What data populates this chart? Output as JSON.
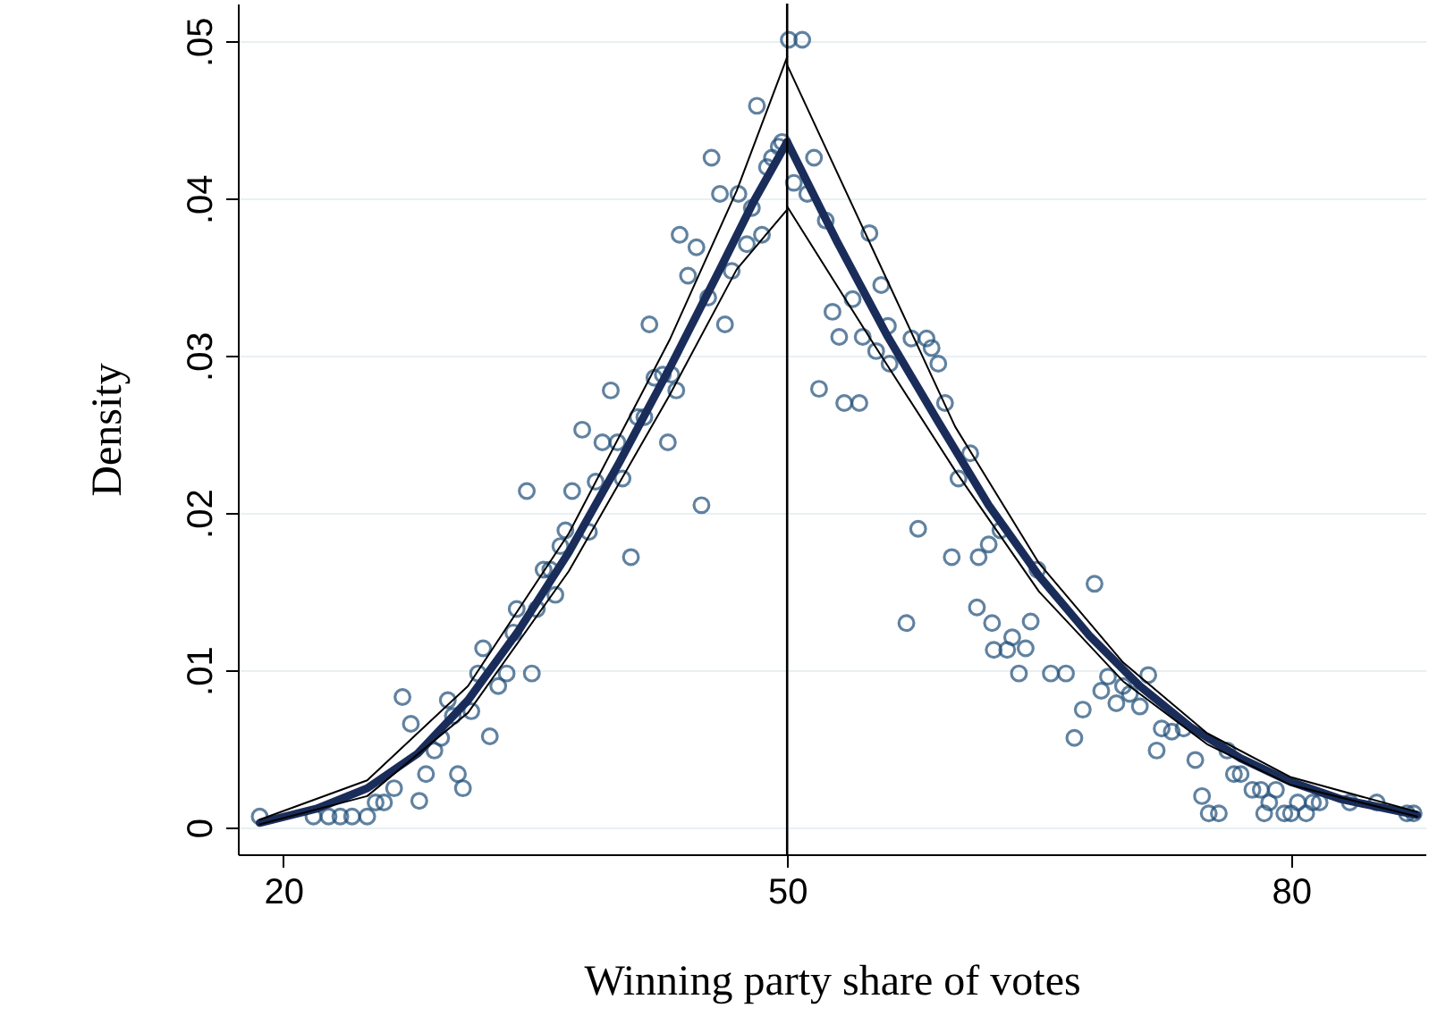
{
  "chart_data": {
    "type": "scatter",
    "xlabel": "Winning party share of votes",
    "ylabel": "Density",
    "xlim": [
      17.3,
      88
    ],
    "ylim": [
      -0.0017,
      0.0524
    ],
    "xticks": [
      20,
      50,
      80
    ],
    "yticks": [
      {
        "value": 0,
        "label": "0"
      },
      {
        "value": 0.01,
        "label": ".01"
      },
      {
        "value": 0.02,
        "label": ".02"
      },
      {
        "value": 0.03,
        "label": ".03"
      },
      {
        "value": 0.04,
        "label": ".04"
      },
      {
        "value": 0.05,
        "label": ".05"
      }
    ],
    "grid": "y",
    "ref_lines": [
      {
        "axis": "x",
        "value": 50,
        "color": "#000000"
      }
    ],
    "series": [
      {
        "marker": "circle",
        "color": "#1f4e79",
        "x": [
          18.6,
          21.8,
          22.7,
          23.4,
          24.1,
          25.0,
          25.5,
          26,
          26.6,
          27.1,
          27.6,
          28.1,
          28.5,
          29,
          29.4,
          29.8,
          30.1,
          30.4,
          30.7,
          31.2,
          31.6,
          31.9,
          32.3,
          32.8,
          33.3,
          33.7,
          33.9,
          34.5,
          34.8,
          35.1,
          35.5,
          35.9,
          36.2,
          36.5,
          36.8,
          37.2,
          37.8,
          38.2,
          38.6,
          39.0,
          39.5,
          39.9,
          40.2,
          40.7,
          41.1,
          41.5,
          41.8,
          42.1,
          42.6,
          42.9,
          43.1,
          43.4,
          43.6,
          44.1,
          44.6,
          44.9,
          45.3,
          45.5,
          46.0,
          46.3,
          46.7,
          47.1,
          47.6,
          47.9,
          48.2,
          48.5,
          48.8,
          49.1,
          49.5,
          49.7,
          50.1,
          50.9,
          51.6,
          50.4,
          51.2,
          52.3,
          54.9,
          52.7,
          53.1,
          53.9,
          55.6,
          51.9,
          53.4,
          54.3,
          54.5,
          55.3,
          56.1,
          56.0,
          57.4,
          58.3,
          58.6,
          59.0,
          59.4,
          60.9,
          60.2,
          57.8,
          57.1,
          59.8,
          61.3,
          62.2,
          62.7,
          62.0,
          61.4,
          62.3,
          63.1,
          63.4,
          64.2,
          63.8,
          64.9,
          64.5,
          66.6,
          65.7,
          67.1,
          67.6,
          68.3,
          68.7,
          69.1,
          69.6,
          70.0,
          70.4,
          71.0,
          71.5,
          72.0,
          72.3,
          72.9,
          73.6,
          74.3,
          74.7,
          75.1,
          75.7,
          76.2,
          76.6,
          77.0,
          77.7,
          78.2,
          78.4,
          78.7,
          79.1,
          79.6,
          80.0,
          80.4,
          80.9,
          81.3,
          81.7,
          83.5,
          85.1,
          86.9,
          87.3
        ],
        "values": [
          0.0007,
          0.0007,
          0.0007,
          0.0007,
          0.0007,
          0.0007,
          0.0016,
          0.0016,
          0.0025,
          0.0083,
          0.0066,
          0.0017,
          0.0034,
          0.0049,
          0.0057,
          0.0081,
          0.0071,
          0.0034,
          0.0025,
          0.0074,
          0.0098,
          0.0114,
          0.0058,
          0.009,
          0.0098,
          0.0124,
          0.0139,
          0.0214,
          0.0098,
          0.0139,
          0.0164,
          0.0164,
          0.0148,
          0.0179,
          0.0189,
          0.0214,
          0.0253,
          0.0188,
          0.022,
          0.0245,
          0.0278,
          0.0245,
          0.0222,
          0.0172,
          0.0261,
          0.0261,
          0.032,
          0.0286,
          0.0288,
          0.0245,
          0.0288,
          0.0278,
          0.0377,
          0.0351,
          0.0369,
          0.0205,
          0.0337,
          0.0426,
          0.0403,
          0.032,
          0.0354,
          0.0403,
          0.0371,
          0.0394,
          0.0459,
          0.0377,
          0.042,
          0.0426,
          0.0433,
          0.0436,
          0.0501,
          0.0501,
          0.0426,
          0.041,
          0.0403,
          0.0386,
          0.0378,
          0.0328,
          0.0312,
          0.0336,
          0.0345,
          0.0279,
          0.027,
          0.027,
          0.0312,
          0.0303,
          0.0295,
          0.0319,
          0.0311,
          0.0311,
          0.0305,
          0.0295,
          0.027,
          0.0238,
          0.0222,
          0.019,
          0.013,
          0.0172,
          0.014,
          0.013,
          0.0189,
          0.018,
          0.0172,
          0.0113,
          0.0113,
          0.0121,
          0.0114,
          0.0098,
          0.0164,
          0.0131,
          0.0098,
          0.0098,
          0.0057,
          0.0075,
          0.0155,
          0.0087,
          0.0096,
          0.0079,
          0.009,
          0.0085,
          0.0077,
          0.0097,
          0.0049,
          0.0063,
          0.0061,
          0.0063,
          0.0043,
          0.002,
          0.0009,
          0.0009,
          0.0049,
          0.0034,
          0.0034,
          0.0024,
          0.0024,
          0.0009,
          0.0016,
          0.0024,
          0.0009,
          0.0009,
          0.0016,
          0.0009,
          0.0016,
          0.0016,
          0.0016,
          0.0016,
          0.0009,
          0.0009
        ]
      },
      {
        "type": "line",
        "color": "#1a2d5a",
        "x": [
          18.6,
          22,
          25,
          28,
          31,
          34,
          37,
          40,
          43,
          46,
          48,
          50
        ],
        "values": [
          0.0003,
          0.0012,
          0.0025,
          0.0047,
          0.0081,
          0.0125,
          0.0175,
          0.0232,
          0.0292,
          0.0355,
          0.0398,
          0.0436
        ]
      },
      {
        "type": "line",
        "color": "#000000",
        "x": [
          18.6,
          25,
          31,
          37,
          43,
          47,
          50
        ],
        "values": [
          0.0005,
          0.003,
          0.009,
          0.0187,
          0.031,
          0.0405,
          0.049
        ]
      },
      {
        "type": "line",
        "color": "#000000",
        "x": [
          18.6,
          25,
          31,
          37,
          43,
          47,
          50
        ],
        "values": [
          0.0002,
          0.002,
          0.0073,
          0.0163,
          0.0275,
          0.0355,
          0.0393
        ]
      },
      {
        "type": "line",
        "color": "#1a2d5a",
        "x": [
          50,
          53,
          56,
          59,
          62,
          65,
          68,
          71,
          74,
          77,
          80,
          83,
          87.5
        ],
        "values": [
          0.0436,
          0.0372,
          0.0312,
          0.0258,
          0.0205,
          0.016,
          0.0122,
          0.009,
          0.0064,
          0.0044,
          0.0029,
          0.0018,
          0.0008
        ]
      },
      {
        "type": "line",
        "color": "#000000",
        "x": [
          50,
          55,
          60,
          65,
          70,
          75,
          80,
          87.5
        ],
        "values": [
          0.0485,
          0.037,
          0.0255,
          0.0168,
          0.0105,
          0.006,
          0.0032,
          0.001
        ]
      },
      {
        "type": "line",
        "color": "#000000",
        "x": [
          50,
          55,
          60,
          65,
          70,
          75,
          80,
          87.5
        ],
        "values": [
          0.0395,
          0.031,
          0.0227,
          0.015,
          0.0093,
          0.0053,
          0.0027,
          0.0007
        ]
      }
    ]
  }
}
